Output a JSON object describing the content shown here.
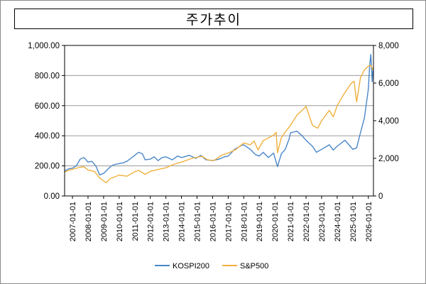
{
  "chart_data": {
    "type": "line",
    "title": "주가추이",
    "xlabel": "",
    "ylabel": "",
    "y2label": "",
    "xlim": [
      "2006-07-01",
      "2026-05-01"
    ],
    "x_ticks": [
      "2007-01-01",
      "2008-01-01",
      "2009-01-01",
      "2010-01-01",
      "2011-01-01",
      "2012-01-01",
      "2013-01-01",
      "2014-01-01",
      "2015-01-01",
      "2016-01-01",
      "2017-01-01",
      "2018-01-01",
      "2019-01-01",
      "2020-01-01",
      "2021-01-01",
      "2022-01-01",
      "2023-01-01",
      "2024-01-01",
      "2025-01-01",
      "2026-01-01"
    ],
    "y_left": {
      "ylim": [
        0,
        1000
      ],
      "ticks": [
        "0.00",
        "200.00",
        "400.00",
        "600.00",
        "800.00",
        "1,000.00"
      ],
      "tick_values": [
        0,
        200,
        400,
        600,
        800,
        1000
      ]
    },
    "y_right": {
      "ylim": [
        0,
        8000
      ],
      "ticks": [
        "0",
        "2,000",
        "4,000",
        "6,000",
        "8,000"
      ],
      "tick_values": [
        0,
        2000,
        4000,
        6000,
        8000
      ]
    },
    "grid": true,
    "legend_position": "bottom-center",
    "series": [
      {
        "name": "KOSPI200",
        "axis": "left",
        "color": "#4a86c8",
        "points": [
          [
            "2006-07-01",
            165
          ],
          [
            "2006-10-01",
            180
          ],
          [
            "2007-01-01",
            185
          ],
          [
            "2007-04-01",
            200
          ],
          [
            "2007-07-01",
            245
          ],
          [
            "2007-10-01",
            255
          ],
          [
            "2008-01-01",
            225
          ],
          [
            "2008-04-01",
            230
          ],
          [
            "2008-07-01",
            200
          ],
          [
            "2008-10-01",
            140
          ],
          [
            "2009-01-01",
            150
          ],
          [
            "2009-04-01",
            175
          ],
          [
            "2009-07-01",
            200
          ],
          [
            "2009-10-01",
            210
          ],
          [
            "2010-01-01",
            215
          ],
          [
            "2010-04-01",
            220
          ],
          [
            "2010-07-01",
            230
          ],
          [
            "2010-10-01",
            250
          ],
          [
            "2011-01-01",
            270
          ],
          [
            "2011-04-01",
            290
          ],
          [
            "2011-07-01,",
            280
          ],
          [
            "2011-09-01",
            240
          ],
          [
            "2012-01-01",
            245
          ],
          [
            "2012-04-01",
            260
          ],
          [
            "2012-07-01",
            235
          ],
          [
            "2012-10-01",
            255
          ],
          [
            "2013-01-01",
            260
          ],
          [
            "2013-06-01",
            240
          ],
          [
            "2013-10-01",
            265
          ],
          [
            "2014-01-01",
            255
          ],
          [
            "2014-07-01",
            270
          ],
          [
            "2014-12-01",
            250
          ],
          [
            "2015-04-01",
            270
          ],
          [
            "2015-08-01",
            240
          ],
          [
            "2016-01-01",
            235
          ],
          [
            "2016-06-01",
            245
          ],
          [
            "2016-10-01",
            260
          ],
          [
            "2017-01-01",
            265
          ],
          [
            "2017-06-01",
            310
          ],
          [
            "2017-11-01",
            335
          ],
          [
            "2018-01-01",
            340
          ],
          [
            "2018-06-01",
            310
          ],
          [
            "2018-10-01",
            275
          ],
          [
            "2019-01-01",
            265
          ],
          [
            "2019-04-01",
            290
          ],
          [
            "2019-08-01",
            255
          ],
          [
            "2019-12-01",
            285
          ],
          [
            "2020-03-01",
            195
          ],
          [
            "2020-06-01",
            280
          ],
          [
            "2020-09-01",
            310
          ],
          [
            "2020-12-01",
            380
          ],
          [
            "2021-01-01",
            420
          ],
          [
            "2021-06-01",
            430
          ],
          [
            "2021-10-01",
            400
          ],
          [
            "2022-01-01",
            370
          ],
          [
            "2022-06-01",
            330
          ],
          [
            "2022-09-01",
            290
          ],
          [
            "2023-01-01",
            310
          ],
          [
            "2023-07-01",
            340
          ],
          [
            "2023-10-01",
            305
          ],
          [
            "2024-01-01",
            330
          ],
          [
            "2024-07-01",
            370
          ],
          [
            "2024-10-01",
            340
          ],
          [
            "2025-01-01",
            310
          ],
          [
            "2025-04-01",
            320
          ],
          [
            "2025-07-01",
            420
          ],
          [
            "2025-10-01",
            520
          ],
          [
            "2026-01-01",
            710
          ],
          [
            "2026-02-01",
            870
          ],
          [
            "2026-03-01",
            940
          ],
          [
            "2026-04-01",
            760
          ],
          [
            "2026-04-25",
            850
          ]
        ]
      },
      {
        "name": "S&P500",
        "axis": "right",
        "color": "#f0b03c",
        "points": [
          [
            "2006-07-01",
            1270
          ],
          [
            "2006-10-01",
            1360
          ],
          [
            "2007-01-01",
            1420
          ],
          [
            "2007-07-01",
            1530
          ],
          [
            "2007-10-01",
            1550
          ],
          [
            "2008-01-01",
            1380
          ],
          [
            "2008-06-01",
            1300
          ],
          [
            "2008-10-01",
            950
          ],
          [
            "2009-03-01",
            700
          ],
          [
            "2009-06-01",
            920
          ],
          [
            "2010-01-01",
            1110
          ],
          [
            "2010-07-01",
            1050
          ],
          [
            "2011-01-01",
            1290
          ],
          [
            "2011-04-01",
            1360
          ],
          [
            "2011-09-01",
            1150
          ],
          [
            "2012-01-01",
            1310
          ],
          [
            "2012-09-01",
            1440
          ],
          [
            "2013-01-01",
            1500
          ],
          [
            "2013-07-01",
            1680
          ],
          [
            "2014-01-01",
            1800
          ],
          [
            "2014-09-01",
            2000
          ],
          [
            "2015-05-01",
            2110
          ],
          [
            "2015-09-01",
            1920
          ],
          [
            "2016-02-01",
            1880
          ],
          [
            "2016-08-01",
            2170
          ],
          [
            "2017-01-01",
            2280
          ],
          [
            "2017-07-01",
            2470
          ],
          [
            "2018-01-01",
            2820
          ],
          [
            "2018-06-01",
            2720
          ],
          [
            "2018-09-01",
            2920
          ],
          [
            "2018-12-01",
            2450
          ],
          [
            "2019-04-01",
            2940
          ],
          [
            "2019-12-01",
            3230
          ],
          [
            "2020-02-01",
            3380
          ],
          [
            "2020-03-01",
            2300
          ],
          [
            "2020-06-01",
            3100
          ],
          [
            "2020-09-01",
            3400
          ],
          [
            "2021-01-01",
            3750
          ],
          [
            "2021-06-01",
            4300
          ],
          [
            "2021-10-01",
            4550
          ],
          [
            "2022-01-01",
            4760
          ],
          [
            "2022-06-01",
            3750
          ],
          [
            "2022-10-01",
            3600
          ],
          [
            "2023-01-01",
            4000
          ],
          [
            "2023-07-01",
            4550
          ],
          [
            "2023-10-01",
            4200
          ],
          [
            "2024-01-01",
            4800
          ],
          [
            "2024-07-01",
            5500
          ],
          [
            "2024-12-01",
            6000
          ],
          [
            "2025-02-01",
            6100
          ],
          [
            "2025-04-01",
            5000
          ],
          [
            "2025-07-01",
            6300
          ],
          [
            "2025-10-01",
            6700
          ],
          [
            "2026-01-01",
            6900
          ],
          [
            "2026-03-01",
            6950
          ],
          [
            "2026-04-25",
            6700
          ]
        ]
      }
    ]
  }
}
